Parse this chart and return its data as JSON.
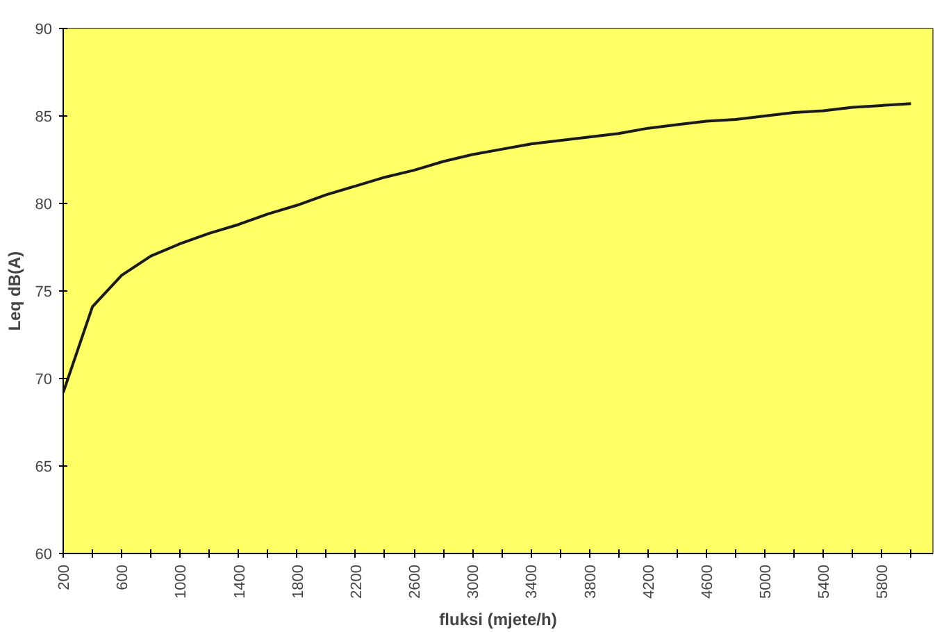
{
  "chart_data": {
    "type": "line",
    "xlabel": "fluksi (mjete/h)",
    "ylabel": "Leq dB(A)",
    "x": [
      200,
      400,
      600,
      800,
      1000,
      1200,
      1400,
      1600,
      1800,
      2000,
      2200,
      2400,
      2600,
      2800,
      3000,
      3200,
      3400,
      3600,
      3800,
      4000,
      4200,
      4400,
      4600,
      4800,
      5000,
      5200,
      5400,
      5600,
      5800,
      6000
    ],
    "series": [
      {
        "color": "#1a1a1a",
        "values": [
          69.2,
          74.1,
          75.9,
          77.0,
          77.7,
          78.3,
          78.8,
          79.4,
          79.9,
          80.5,
          81.0,
          81.5,
          81.9,
          82.4,
          82.8,
          83.1,
          83.4,
          83.6,
          83.8,
          84.0,
          84.3,
          84.5,
          84.7,
          84.8,
          85.0,
          85.2,
          85.3,
          85.5,
          85.6,
          85.7
        ]
      }
    ],
    "xlim": [
      200,
      6150
    ],
    "ylim": [
      60,
      90
    ],
    "xticks": [
      200,
      {
        "value": 400,
        "label": null
      },
      600,
      {
        "value": 800,
        "label": null
      },
      1000,
      {
        "value": 1200,
        "label": null
      },
      1400,
      {
        "value": 1600,
        "label": null
      },
      1800,
      {
        "value": 2000,
        "label": null
      },
      2200,
      {
        "value": 2400,
        "label": null
      },
      2600,
      {
        "value": 2800,
        "label": null
      },
      3000,
      {
        "value": 3200,
        "label": null
      },
      3400,
      {
        "value": 3600,
        "label": null
      },
      3800,
      {
        "value": 4000,
        "label": null
      },
      4200,
      {
        "value": 4400,
        "label": null
      },
      4600,
      {
        "value": 4800,
        "label": null
      },
      5000,
      {
        "value": 5200,
        "label": null
      },
      5400,
      {
        "value": 5600,
        "label": null
      },
      5800,
      {
        "value": 6000,
        "label": null
      }
    ],
    "yticks": [
      60,
      65,
      70,
      75,
      80,
      85,
      90
    ],
    "grid": false,
    "marker": "none",
    "line_style": "solid"
  }
}
